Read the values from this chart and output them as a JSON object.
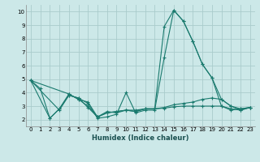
{
  "xlabel": "Humidex (Indice chaleur)",
  "bg_color": "#cce8e8",
  "line_color": "#1a7a6e",
  "grid_color": "#aacccc",
  "xlim": [
    -0.5,
    23.5
  ],
  "ylim": [
    1.5,
    10.5
  ],
  "xticks": [
    0,
    1,
    2,
    3,
    4,
    5,
    6,
    7,
    8,
    9,
    10,
    11,
    12,
    13,
    14,
    15,
    16,
    17,
    18,
    19,
    20,
    21,
    22,
    23
  ],
  "yticks": [
    2,
    3,
    4,
    5,
    6,
    7,
    8,
    9,
    10
  ],
  "lines": [
    {
      "x": [
        0,
        1,
        2,
        3,
        4,
        5,
        6,
        7,
        8,
        9,
        10,
        11,
        12,
        13,
        14,
        15,
        16,
        17,
        18,
        19,
        20,
        21,
        22,
        23
      ],
      "y": [
        4.9,
        4.3,
        2.1,
        2.8,
        3.8,
        3.6,
        3.2,
        2.1,
        2.2,
        2.4,
        4.0,
        2.5,
        2.7,
        2.7,
        6.6,
        10.1,
        9.3,
        7.8,
        6.1,
        5.1,
        3.0,
        2.7,
        2.8,
        2.9
      ]
    },
    {
      "x": [
        0,
        4,
        5,
        6,
        7,
        8,
        9,
        10,
        11,
        12,
        13,
        14,
        15,
        16,
        17,
        18,
        19,
        20,
        21,
        22,
        23
      ],
      "y": [
        4.9,
        3.9,
        3.5,
        3.0,
        2.2,
        2.5,
        2.6,
        2.7,
        2.6,
        2.8,
        2.8,
        2.9,
        3.1,
        3.2,
        3.3,
        3.5,
        3.6,
        3.5,
        3.0,
        2.8,
        2.9
      ]
    },
    {
      "x": [
        0,
        2,
        3,
        4,
        5,
        6,
        7,
        8,
        9,
        10,
        11,
        12,
        13,
        14,
        15,
        16,
        17,
        18,
        19,
        20,
        21,
        22,
        23
      ],
      "y": [
        4.9,
        2.1,
        2.8,
        3.9,
        3.5,
        3.3,
        2.2,
        2.5,
        2.6,
        2.7,
        2.7,
        2.8,
        2.8,
        2.85,
        2.95,
        3.0,
        3.0,
        3.0,
        3.0,
        3.0,
        2.8,
        2.7,
        2.9
      ]
    },
    {
      "x": [
        0,
        3,
        4,
        5,
        6,
        7,
        8,
        9,
        10,
        11,
        12,
        13,
        14,
        15,
        16,
        17,
        18,
        19,
        20,
        21,
        22,
        23
      ],
      "y": [
        4.9,
        2.7,
        3.8,
        3.6,
        2.9,
        2.2,
        2.6,
        2.5,
        2.7,
        2.6,
        2.8,
        2.8,
        8.9,
        10.1,
        9.3,
        7.8,
        6.1,
        5.1,
        3.5,
        3.0,
        2.7,
        2.9
      ]
    }
  ]
}
